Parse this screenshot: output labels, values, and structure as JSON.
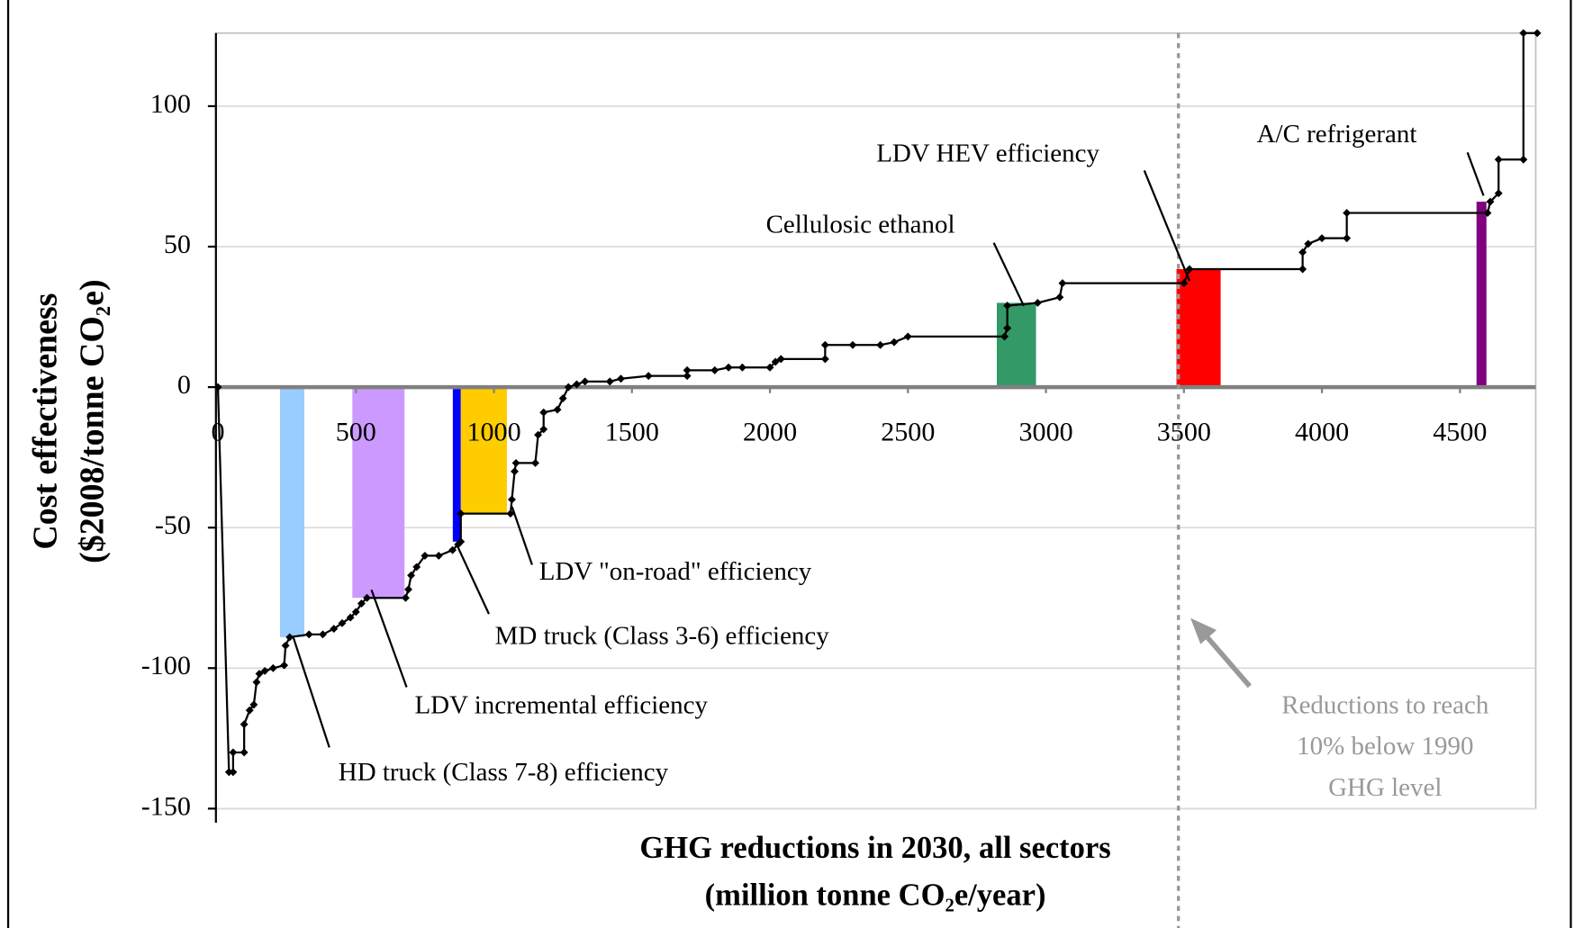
{
  "chart_data": {
    "type": "line",
    "y_label": [
      "Cost effectiveness",
      "($2008/tonne CO₂e)"
    ],
    "x_label": [
      "GHG reductions in 2030, all sectors",
      "(million tonne CO₂e/year)"
    ],
    "xlim": [
      0,
      4780
    ],
    "xticks": [
      0,
      500,
      1000,
      1500,
      2000,
      2500,
      3000,
      3500,
      4000,
      4500
    ],
    "ylim": [
      -150,
      126
    ],
    "yticks": [
      -150,
      -100,
      -50,
      0,
      50,
      100
    ],
    "grid": true,
    "color": "#000000",
    "x": [
      0,
      40,
      55,
      55,
      95,
      95,
      115,
      130,
      140,
      150,
      170,
      200,
      240,
      245,
      260,
      330,
      380,
      420,
      450,
      480,
      500,
      520,
      540,
      680,
      690,
      700,
      720,
      750,
      800,
      850,
      870,
      880,
      880,
      1060,
      1065,
      1075,
      1080,
      1150,
      1160,
      1180,
      1180,
      1230,
      1250,
      1270,
      1300,
      1330,
      1420,
      1460,
      1560,
      1700,
      1700,
      1800,
      1850,
      1900,
      2000,
      2020,
      2040,
      2200,
      2200,
      2300,
      2400,
      2450,
      2500,
      2850,
      2860,
      2860,
      2970,
      3050,
      3060,
      3500,
      3520,
      3930,
      3930,
      3950,
      4000,
      4090,
      4090,
      4600,
      4610,
      4640,
      4640,
      4730,
      4730,
      4780
    ],
    "values": [
      0,
      -137,
      -137,
      -130,
      -130,
      -120,
      -115,
      -113,
      -105,
      -102,
      -101,
      -100,
      -99,
      -92,
      -89,
      -88,
      -88,
      -86,
      -84,
      -82,
      -80,
      -77,
      -75,
      -75,
      -72,
      -67,
      -64,
      -60,
      -60,
      -58,
      -56,
      -55,
      -45,
      -45,
      -40,
      -30,
      -27,
      -27,
      -17,
      -15,
      -9,
      -8,
      -4,
      0,
      1,
      2,
      2,
      3,
      4,
      4,
      6,
      6,
      7,
      7,
      7,
      9,
      10,
      10,
      15,
      15,
      15,
      16,
      18,
      18,
      21,
      29,
      30,
      32,
      37,
      37,
      42,
      42,
      48,
      51,
      53,
      53,
      62,
      62,
      66,
      69,
      81,
      81,
      126,
      126
    ],
    "bars": [
      {
        "label": "HD truck (Class 7-8) efficiency",
        "x0": 225,
        "x1": 313,
        "value": -89,
        "color": "#99ccff"
      },
      {
        "label": "LDV incremental efficiency",
        "x0": 487,
        "x1": 676,
        "value": -75,
        "color": "#cc99ff"
      },
      {
        "label": "MD truck (Class 3-6) efficiency",
        "x0": 851,
        "x1": 880,
        "value": -55,
        "color": "#0000ff"
      },
      {
        "label": "LDV \"on-road\" efficiency",
        "x0": 880,
        "x1": 1047,
        "value": -45,
        "color": "#ffcc00"
      },
      {
        "label": "Cellulosic ethanol",
        "x0": 2822,
        "x1": 2964,
        "value": 30,
        "color": "#339966"
      },
      {
        "label": "LDV HEV efficiency",
        "x0": 3473,
        "x1": 3633,
        "value": 42,
        "color": "#ff0000"
      },
      {
        "label": "A/C refrigerant",
        "x0": 4560,
        "x1": 4596,
        "value": 66,
        "color": "#800080"
      }
    ],
    "reference_line": {
      "x": 3480,
      "label": [
        "Reductions to reach",
        "10% below 1990",
        "GHG level"
      ]
    }
  }
}
